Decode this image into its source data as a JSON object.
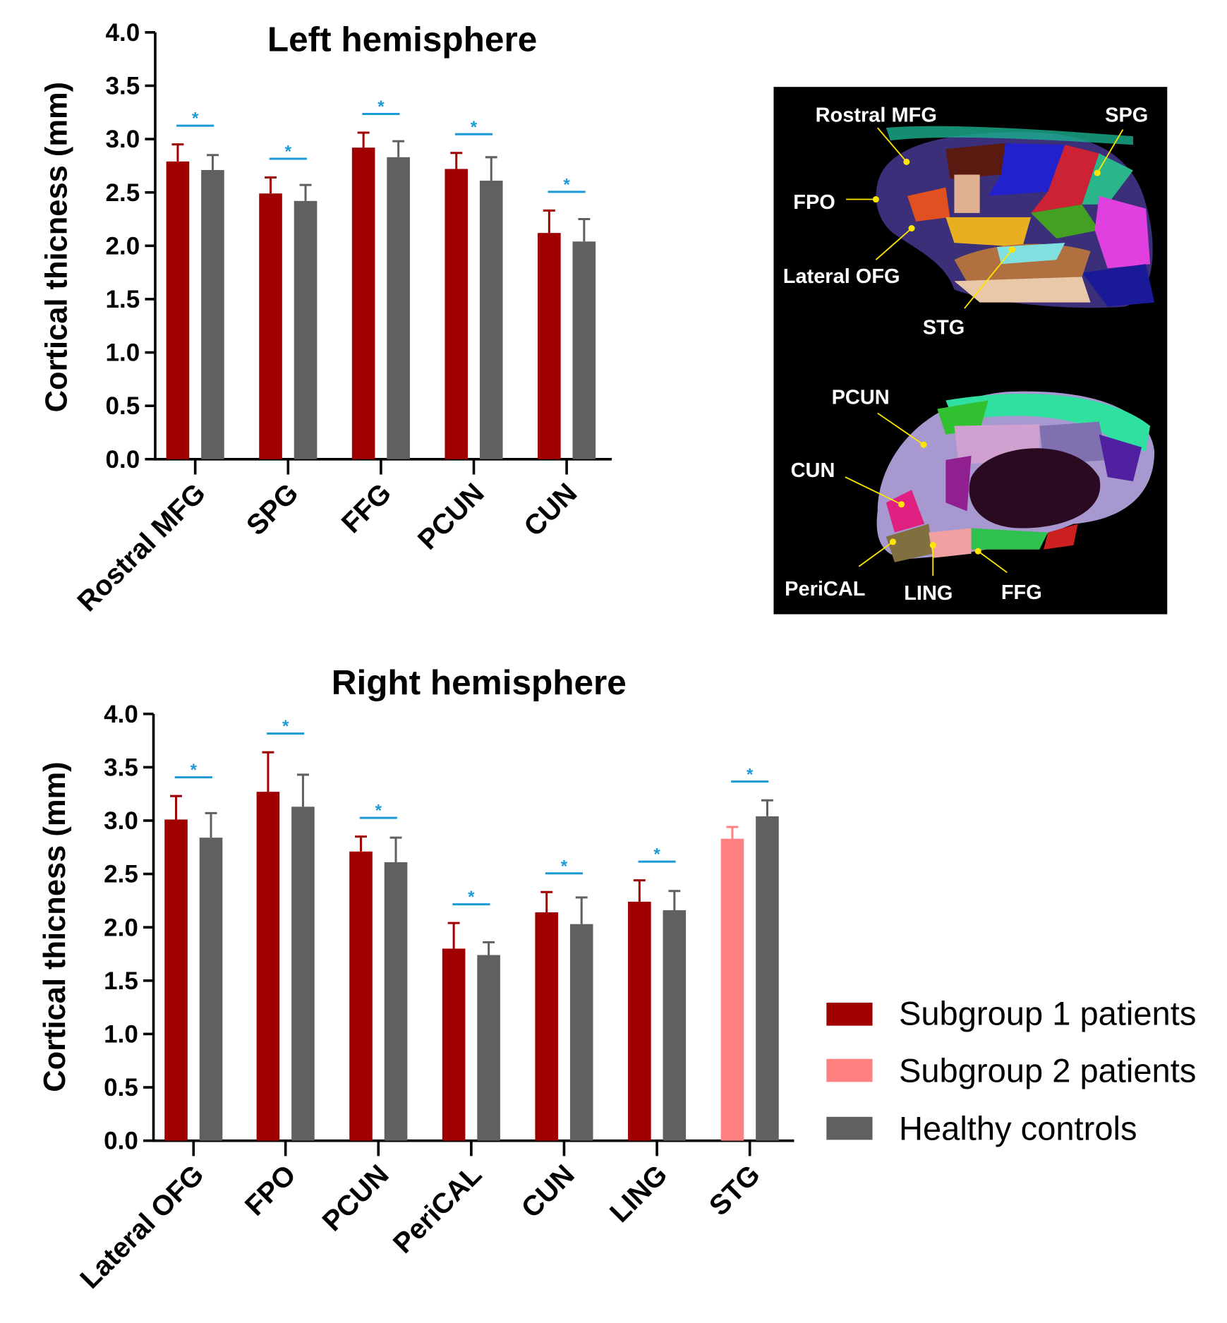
{
  "colors": {
    "subgroup1": "#a00000",
    "subgroup2": "#ff8080",
    "controls": "#606060",
    "significance": "#1a9ad6",
    "leader": "#ffe600"
  },
  "legend": [
    {
      "label": "Subgroup 1 patients",
      "color": "#a00000"
    },
    {
      "label": "Subgroup 2 patients",
      "color": "#ff8080"
    },
    {
      "label": "Healthy controls",
      "color": "#606060"
    }
  ],
  "chart_data": [
    {
      "type": "bar",
      "title": "Left hemisphere",
      "ylabel": "Cortical thicness (mm)",
      "ylim": [
        0,
        4.0
      ],
      "yticks": [
        "0.0",
        "0.5",
        "1.0",
        "1.5",
        "2.0",
        "2.5",
        "3.0",
        "3.5",
        "4.0"
      ],
      "grid": false,
      "categories": [
        "Rostral MFG",
        "SPG",
        "FFG",
        "PCUN",
        "CUN"
      ],
      "significance_marker": "*",
      "significant": [
        true,
        true,
        true,
        true,
        true
      ],
      "series": [
        {
          "group": "patients",
          "colors": [
            "#a00000",
            "#a00000",
            "#a00000",
            "#a00000",
            "#a00000"
          ],
          "values": [
            2.79,
            2.49,
            2.92,
            2.72,
            2.12
          ],
          "error": [
            0.16,
            0.15,
            0.14,
            0.15,
            0.21
          ]
        },
        {
          "group": "controls",
          "colors": [
            "#606060",
            "#606060",
            "#606060",
            "#606060",
            "#606060"
          ],
          "values": [
            2.71,
            2.42,
            2.83,
            2.61,
            2.04
          ],
          "error": [
            0.14,
            0.15,
            0.15,
            0.22,
            0.21
          ]
        }
      ]
    },
    {
      "type": "bar",
      "title": "Right hemisphere",
      "ylabel": "Cortical thicness (mm)",
      "ylim": [
        0,
        4.0
      ],
      "yticks": [
        "0.0",
        "0.5",
        "1.0",
        "1.5",
        "2.0",
        "2.5",
        "3.0",
        "3.5",
        "4.0"
      ],
      "grid": false,
      "categories": [
        "Lateral OFG",
        "FPO",
        "PCUN",
        "PeriCAL",
        "CUN",
        "LING",
        "STG"
      ],
      "significance_marker": "*",
      "significant": [
        true,
        true,
        true,
        true,
        true,
        true,
        true
      ],
      "series": [
        {
          "group": "patients",
          "colors": [
            "#a00000",
            "#a00000",
            "#a00000",
            "#a00000",
            "#a00000",
            "#a00000",
            "#ff8080"
          ],
          "values": [
            3.01,
            3.27,
            2.71,
            1.8,
            2.14,
            2.24,
            2.83
          ],
          "error": [
            0.22,
            0.37,
            0.14,
            0.24,
            0.19,
            0.2,
            0.11
          ]
        },
        {
          "group": "controls",
          "colors": [
            "#606060",
            "#606060",
            "#606060",
            "#606060",
            "#606060",
            "#606060",
            "#606060"
          ],
          "values": [
            2.84,
            3.13,
            2.61,
            1.74,
            2.03,
            2.16,
            3.04
          ],
          "error": [
            0.23,
            0.3,
            0.23,
            0.12,
            0.25,
            0.18,
            0.15
          ]
        }
      ]
    }
  ],
  "brain_panel": {
    "labels": [
      "Rostral MFG",
      "SPG",
      "FPO",
      "Lateral OFG",
      "STG",
      "PCUN",
      "CUN",
      "PeriCAL",
      "LING",
      "FFG"
    ]
  }
}
